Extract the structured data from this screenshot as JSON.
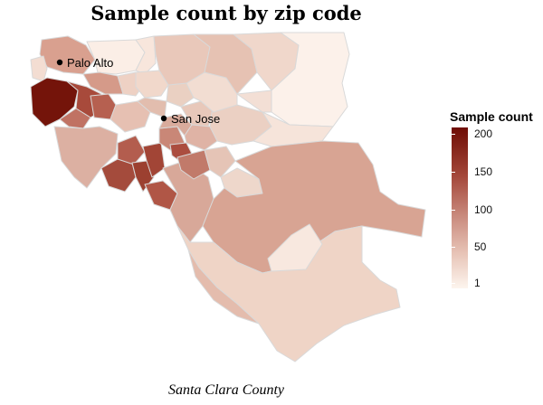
{
  "title": "Sample count by zip code",
  "caption": "Santa Clara County",
  "legend": {
    "title": "Sample count",
    "ticks": [
      "200",
      "150",
      "100",
      "50",
      "1"
    ],
    "min": 1,
    "max": 210,
    "colors": {
      "high": "#6f0d05",
      "low": "#fdf5ee"
    }
  },
  "cities": [
    {
      "name": "Palo Alto"
    },
    {
      "name": "San Jose"
    }
  ]
}
